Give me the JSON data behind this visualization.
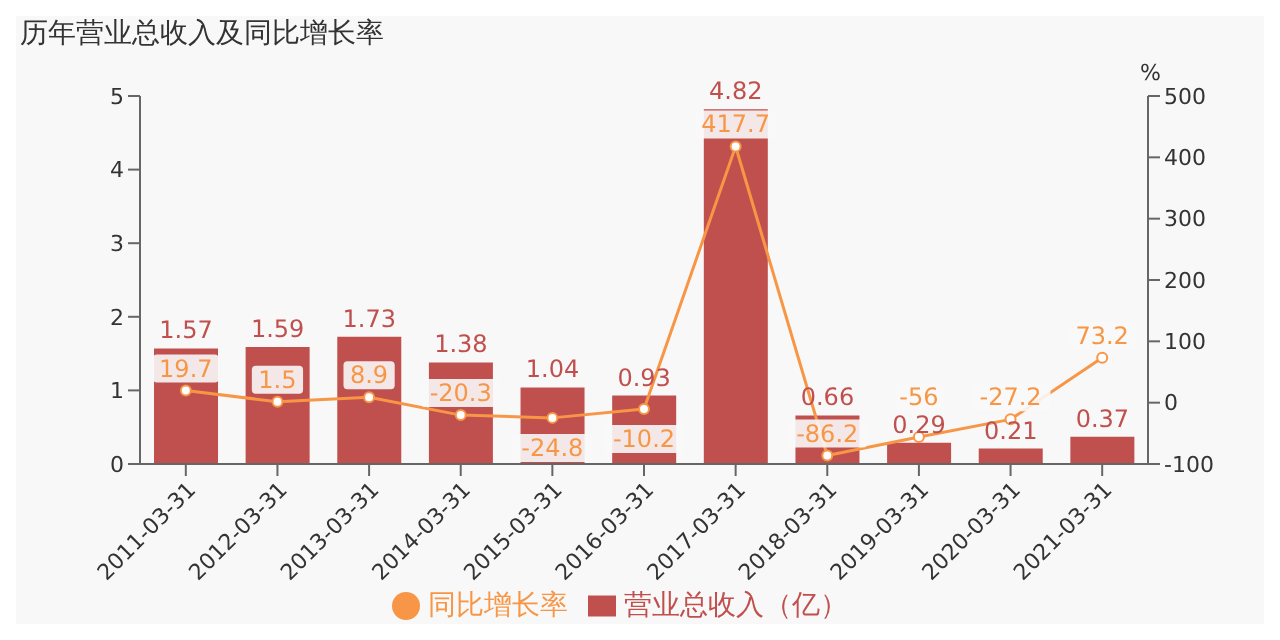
{
  "chart_data": {
    "type": "bar",
    "title": "历年营业总收入及同比增长率",
    "y2label": "%",
    "categories": [
      "2011-03-31",
      "2012-03-31",
      "2013-03-31",
      "2014-03-31",
      "2015-03-31",
      "2016-03-31",
      "2017-03-31",
      "2018-03-31",
      "2019-03-31",
      "2020-03-31",
      "2021-03-31"
    ],
    "series": [
      {
        "name": "营业总收入（亿）",
        "color": "#c0504d",
        "values": [
          1.57,
          1.59,
          1.73,
          1.38,
          1.04,
          0.93,
          4.82,
          0.66,
          0.29,
          0.21,
          0.37
        ]
      },
      {
        "name": "同比增长率",
        "type": "line",
        "axis": "y2",
        "color": "#f79646",
        "values": [
          19.7,
          1.5,
          8.9,
          -20.3,
          -24.8,
          -10.2,
          417.7,
          -86.2,
          -56,
          -27.2,
          73.2
        ]
      }
    ],
    "ylim": [
      0,
      5
    ],
    "yticks": [
      0,
      1,
      2,
      3,
      4,
      5
    ],
    "y2lim": [
      -100,
      500
    ],
    "y2ticks": [
      -100,
      0,
      100,
      200,
      300,
      400,
      500
    ],
    "data_labels": true,
    "legend": "bottom",
    "marker": "circle",
    "grid": false
  }
}
